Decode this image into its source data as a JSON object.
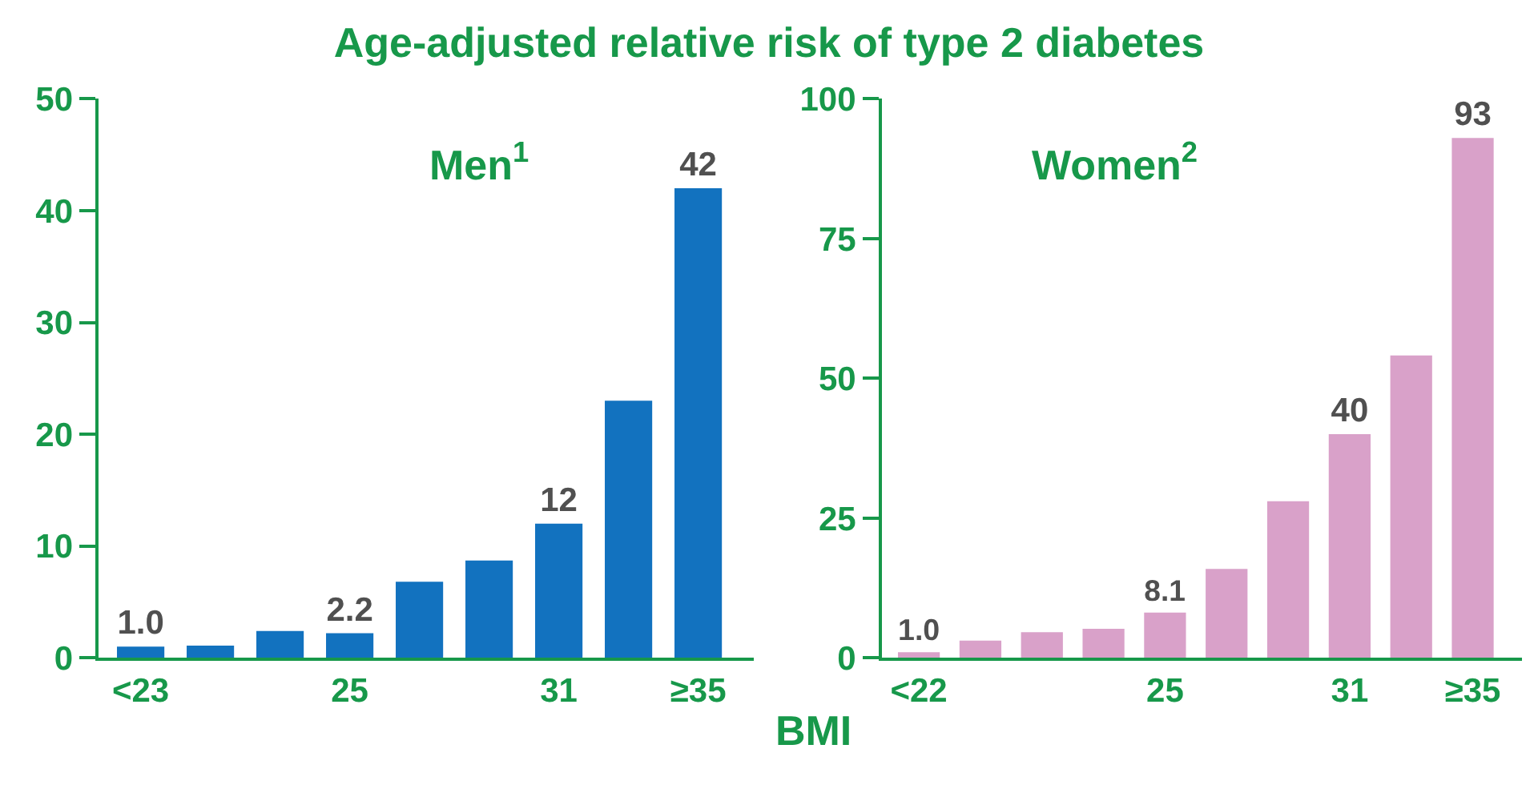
{
  "chart_data": [
    {
      "type": "bar",
      "title": "Age-adjusted relative risk of type 2 diabetes",
      "subtitle": "Men$^{1}$",
      "xlabel": "BMI",
      "categories": [
        "<23",
        null,
        null,
        "25",
        null,
        null,
        "31",
        null,
        "≥35"
      ],
      "values": [
        1.0,
        1.1,
        2.4,
        2.2,
        6.8,
        8.7,
        12,
        23.0,
        42
      ],
      "value_labels": [
        "1.0",
        null,
        null,
        "2.2",
        null,
        null,
        "12",
        null,
        "42"
      ],
      "color": "#1272bf",
      "ylim": [
        0,
        50
      ],
      "yticks": [
        0,
        10,
        20,
        30,
        40,
        50
      ]
    },
    {
      "type": "bar",
      "subtitle": "Women$^{2}$",
      "categories": [
        "<22",
        null,
        null,
        null,
        "25",
        null,
        null,
        "31",
        null,
        "≥35"
      ],
      "values": [
        1.0,
        3.1,
        4.6,
        5.2,
        8.1,
        15.9,
        28.0,
        40,
        54.1,
        93
      ],
      "value_labels": [
        "1.0",
        null,
        null,
        null,
        "8.1",
        null,
        null,
        "40",
        null,
        "93"
      ],
      "color": "#d9a1c9",
      "ylim": [
        0,
        100
      ],
      "yticks": [
        0,
        25,
        50,
        75,
        100
      ]
    }
  ]
}
